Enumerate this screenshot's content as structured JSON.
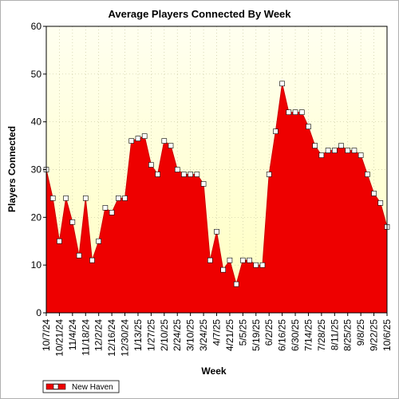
{
  "chart_data": {
    "type": "area",
    "title": "Average Players Connected By Week",
    "xlabel": "Week",
    "ylabel": "Players Connected",
    "ylim": [
      0,
      60
    ],
    "yticks": [
      0,
      10,
      20,
      30,
      40,
      50,
      60
    ],
    "grid": true,
    "legend_position": "bottom-left",
    "colors": {
      "area": "#ee0000",
      "line": "#cc0000",
      "plot_bg_top": "#fffff0",
      "plot_bg_bottom": "#ffffc0",
      "marker_fill": "#ffffff"
    },
    "x": [
      "10/7/24",
      "10/14/24",
      "10/21/24",
      "10/28/24",
      "11/4/24",
      "11/11/24",
      "11/18/24",
      "11/25/24",
      "12/2/24",
      "12/9/24",
      "12/16/24",
      "12/23/24",
      "12/30/24",
      "1/6/25",
      "1/13/25",
      "1/20/25",
      "1/27/25",
      "2/3/25",
      "2/10/25",
      "2/17/25",
      "2/24/25",
      "3/3/25",
      "3/10/25",
      "3/17/25",
      "3/24/25",
      "3/31/25",
      "4/7/25",
      "4/14/25",
      "4/21/25",
      "4/28/25",
      "5/5/25",
      "5/12/25",
      "5/19/25",
      "5/26/25",
      "6/2/25",
      "6/9/25",
      "6/16/25",
      "6/23/25",
      "6/30/25",
      "7/7/25",
      "7/14/25",
      "7/21/25",
      "7/28/25",
      "8/4/25",
      "8/11/25",
      "8/18/25",
      "8/25/25",
      "9/1/25",
      "9/8/25",
      "9/15/25",
      "9/22/25",
      "9/29/25",
      "10/6/25"
    ],
    "xtick_labels": [
      "10/7/24",
      "10/21/24",
      "11/4/24",
      "11/18/24",
      "12/2/24",
      "12/16/24",
      "12/30/24",
      "1/13/25",
      "1/27/25",
      "2/10/25",
      "2/24/25",
      "3/10/25",
      "3/24/25",
      "4/7/25",
      "4/21/25",
      "5/5/25",
      "5/19/25",
      "6/2/25",
      "6/16/25",
      "6/30/25",
      "7/14/25",
      "7/28/25",
      "8/11/25",
      "8/25/25",
      "9/8/25",
      "9/22/25",
      "10/6/25"
    ],
    "series": [
      {
        "name": "New Haven",
        "values": [
          30,
          24,
          15,
          24,
          19,
          12,
          24,
          11,
          15,
          22,
          21,
          24,
          24,
          36,
          36.5,
          37,
          31,
          29,
          36,
          35,
          30,
          29,
          29,
          29,
          27,
          11,
          17,
          9,
          11,
          6,
          11,
          11,
          10,
          10,
          29,
          38,
          48,
          42,
          42,
          42,
          39,
          35,
          33,
          34,
          34,
          35,
          34,
          34,
          33,
          29,
          25,
          23,
          18
        ]
      }
    ]
  }
}
